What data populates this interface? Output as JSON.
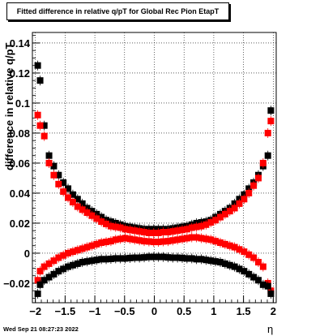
{
  "chart_data": {
    "type": "scatter",
    "title": "Fitted difference in relative q/pT for Global Rec Pion EtapT",
    "xlabel": "η",
    "ylabel": "difference in relative q/pT",
    "xlim": [
      -2.05,
      2.05
    ],
    "ylim": [
      -0.033,
      0.147
    ],
    "x_ticks": [
      "−2",
      "−1.5",
      "−1",
      "−0.5",
      "0",
      "0.5",
      "1",
      "1.5",
      "2"
    ],
    "y_ticks": [
      "−0.02",
      "0",
      "0.02",
      "0.04",
      "0.06",
      "0.08",
      "0.1",
      "0.12",
      "0.14"
    ],
    "grid": true,
    "legend": "none",
    "series": [
      {
        "marker": "square",
        "color": "#000000",
        "x": [
          -1.96,
          -1.92,
          -1.85,
          -1.77,
          -1.69,
          -1.61,
          -1.53,
          -1.45,
          -1.37,
          -1.29,
          -1.21,
          -1.13,
          -1.05,
          -0.97,
          -0.89,
          -0.81,
          -0.73,
          -0.65,
          -0.57,
          -0.49,
          -0.41,
          -0.33,
          -0.25,
          -0.17,
          -0.09,
          -0.01,
          0.07,
          0.15,
          0.23,
          0.31,
          0.39,
          0.47,
          0.55,
          0.63,
          0.71,
          0.79,
          0.87,
          0.95,
          1.03,
          1.11,
          1.19,
          1.27,
          1.35,
          1.43,
          1.51,
          1.59,
          1.67,
          1.75,
          1.83,
          1.91,
          1.96
        ],
        "y": [
          0.125,
          0.115,
          0.085,
          0.065,
          0.058,
          0.052,
          0.047,
          0.043,
          0.039,
          0.036,
          0.033,
          0.03,
          0.028,
          0.026,
          0.024,
          0.022,
          0.021,
          0.02,
          0.019,
          0.018,
          0.0175,
          0.017,
          0.0165,
          0.016,
          0.016,
          0.016,
          0.016,
          0.016,
          0.016,
          0.0165,
          0.017,
          0.0175,
          0.018,
          0.019,
          0.02,
          0.0205,
          0.021,
          0.022,
          0.024,
          0.026,
          0.028,
          0.03,
          0.033,
          0.036,
          0.039,
          0.043,
          0.047,
          0.052,
          0.058,
          0.065,
          0.095
        ]
      },
      {
        "marker": "square",
        "color": "#ff0000",
        "x": [
          -1.96,
          -1.92,
          -1.85,
          -1.77,
          -1.69,
          -1.61,
          -1.53,
          -1.45,
          -1.37,
          -1.29,
          -1.21,
          -1.13,
          -1.05,
          -0.97,
          -0.89,
          -0.81,
          -0.73,
          -0.65,
          -0.57,
          -0.49,
          -0.41,
          -0.33,
          -0.25,
          -0.17,
          -0.09,
          -0.01,
          0.07,
          0.15,
          0.23,
          0.31,
          0.39,
          0.47,
          0.55,
          0.63,
          0.71,
          0.79,
          0.87,
          0.95,
          1.03,
          1.11,
          1.19,
          1.27,
          1.35,
          1.43,
          1.51,
          1.59,
          1.67,
          1.75,
          1.83,
          1.91,
          1.96
        ],
        "y": [
          0.092,
          0.085,
          0.078,
          0.06,
          0.052,
          0.046,
          0.041,
          0.037,
          0.034,
          0.031,
          0.029,
          0.027,
          0.025,
          0.023,
          0.021,
          0.0195,
          0.018,
          0.0175,
          0.017,
          0.016,
          0.0155,
          0.015,
          0.0145,
          0.014,
          0.0135,
          0.0135,
          0.0135,
          0.014,
          0.014,
          0.0145,
          0.015,
          0.0155,
          0.016,
          0.017,
          0.0175,
          0.018,
          0.019,
          0.0205,
          0.022,
          0.024,
          0.026,
          0.028,
          0.03,
          0.033,
          0.036,
          0.04,
          0.045,
          0.05,
          0.06,
          0.08,
          0.088
        ]
      },
      {
        "marker": "square",
        "color": "#ff0000",
        "x": [
          -1.96,
          -1.92,
          -1.85,
          -1.77,
          -1.69,
          -1.61,
          -1.53,
          -1.45,
          -1.37,
          -1.29,
          -1.21,
          -1.13,
          -1.05,
          -0.97,
          -0.89,
          -0.81,
          -0.73,
          -0.65,
          -0.57,
          -0.49,
          -0.41,
          -0.33,
          -0.25,
          -0.17,
          -0.09,
          -0.01,
          0.07,
          0.15,
          0.23,
          0.31,
          0.39,
          0.47,
          0.55,
          0.63,
          0.71,
          0.79,
          0.87,
          0.95,
          1.03,
          1.11,
          1.19,
          1.27,
          1.35,
          1.43,
          1.51,
          1.59,
          1.67,
          1.75,
          1.83,
          1.91,
          1.96
        ],
        "y": [
          -0.018,
          -0.012,
          -0.009,
          -0.007,
          -0.005,
          -0.003,
          -0.0015,
          0.0,
          0.001,
          0.002,
          0.003,
          0.004,
          0.005,
          0.006,
          0.007,
          0.0075,
          0.008,
          0.009,
          0.0095,
          0.01,
          0.0095,
          0.009,
          0.0085,
          0.008,
          0.0078,
          0.0075,
          0.0075,
          0.0078,
          0.008,
          0.0085,
          0.009,
          0.0095,
          0.01,
          0.0105,
          0.0105,
          0.01,
          0.0095,
          0.009,
          0.008,
          0.007,
          0.006,
          0.005,
          0.004,
          0.0025,
          0.001,
          -0.001,
          -0.003,
          -0.006,
          -0.009,
          -0.02,
          -0.025
        ]
      },
      {
        "marker": "square",
        "color": "#000000",
        "x": [
          -1.96,
          -1.92,
          -1.85,
          -1.77,
          -1.69,
          -1.61,
          -1.53,
          -1.45,
          -1.37,
          -1.29,
          -1.21,
          -1.13,
          -1.05,
          -0.97,
          -0.89,
          -0.81,
          -0.73,
          -0.65,
          -0.57,
          -0.49,
          -0.41,
          -0.33,
          -0.25,
          -0.17,
          -0.09,
          -0.01,
          0.07,
          0.15,
          0.23,
          0.31,
          0.39,
          0.47,
          0.55,
          0.63,
          0.71,
          0.79,
          0.87,
          0.95,
          1.03,
          1.11,
          1.19,
          1.27,
          1.35,
          1.43,
          1.51,
          1.59,
          1.67,
          1.75,
          1.83,
          1.91,
          1.96
        ],
        "y": [
          -0.027,
          -0.021,
          -0.018,
          -0.016,
          -0.014,
          -0.012,
          -0.0105,
          -0.009,
          -0.008,
          -0.007,
          -0.006,
          -0.0055,
          -0.005,
          -0.0045,
          -0.004,
          -0.004,
          -0.0038,
          -0.0035,
          -0.0035,
          -0.0035,
          -0.0032,
          -0.003,
          -0.003,
          -0.0028,
          -0.0025,
          -0.0025,
          -0.0025,
          -0.0025,
          -0.0028,
          -0.003,
          -0.003,
          -0.0032,
          -0.0035,
          -0.0035,
          -0.004,
          -0.004,
          -0.0045,
          -0.005,
          -0.0055,
          -0.006,
          -0.007,
          -0.008,
          -0.009,
          -0.0105,
          -0.012,
          -0.014,
          -0.016,
          -0.018,
          -0.021,
          -0.022,
          -0.027
        ]
      }
    ]
  },
  "datestamp": "Wed Sep 21 08:27:23 2022"
}
